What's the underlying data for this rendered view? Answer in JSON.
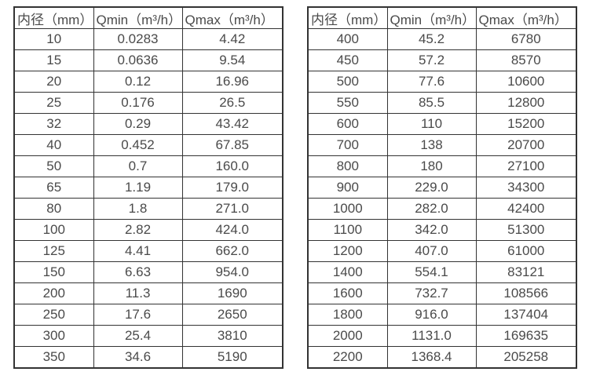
{
  "colors": {
    "background": "#ffffff",
    "border": "#333333",
    "text": "#4a4a4a"
  },
  "chart_data": [
    {
      "type": "table",
      "name": "flow-range-small-diameters",
      "columns": [
        "内径（mm）",
        "Qmin（m³/h）",
        "Qmax（m³/h）"
      ],
      "rows": [
        [
          "10",
          "0.0283",
          "4.42"
        ],
        [
          "15",
          "0.0636",
          "9.54"
        ],
        [
          "20",
          "0.12",
          "16.96"
        ],
        [
          "25",
          "0.176",
          "26.5"
        ],
        [
          "32",
          "0.29",
          "43.42"
        ],
        [
          "40",
          "0.452",
          "67.85"
        ],
        [
          "50",
          "0.7",
          "160.0"
        ],
        [
          "65",
          "1.19",
          "179.0"
        ],
        [
          "80",
          "1.8",
          "271.0"
        ],
        [
          "100",
          "2.82",
          "424.0"
        ],
        [
          "125",
          "4.41",
          "662.0"
        ],
        [
          "150",
          "6.63",
          "954.0"
        ],
        [
          "200",
          "11.3",
          "1690"
        ],
        [
          "250",
          "17.6",
          "2650"
        ],
        [
          "300",
          "25.4",
          "3810"
        ],
        [
          "350",
          "34.6",
          "5190"
        ]
      ]
    },
    {
      "type": "table",
      "name": "flow-range-large-diameters",
      "columns": [
        "内径（mm）",
        "Qmin（m³/h）",
        "Qmax（m³/h）"
      ],
      "rows": [
        [
          "400",
          "45.2",
          "6780"
        ],
        [
          "450",
          "57.2",
          "8570"
        ],
        [
          "500",
          "77.6",
          "10600"
        ],
        [
          "550",
          "85.5",
          "12800"
        ],
        [
          "600",
          "110",
          "15200"
        ],
        [
          "700",
          "138",
          "20700"
        ],
        [
          "800",
          "180",
          "27100"
        ],
        [
          "900",
          "229.0",
          "34300"
        ],
        [
          "1000",
          "282.0",
          "42400"
        ],
        [
          "1100",
          "342.0",
          "51300"
        ],
        [
          "1200",
          "407.0",
          "61000"
        ],
        [
          "1400",
          "554.1",
          "83121"
        ],
        [
          "1600",
          "732.7",
          "108566"
        ],
        [
          "1800",
          "916.0",
          "137404"
        ],
        [
          "2000",
          "1131.0",
          "169635"
        ],
        [
          "2200",
          "1368.4",
          "205258"
        ]
      ]
    }
  ]
}
